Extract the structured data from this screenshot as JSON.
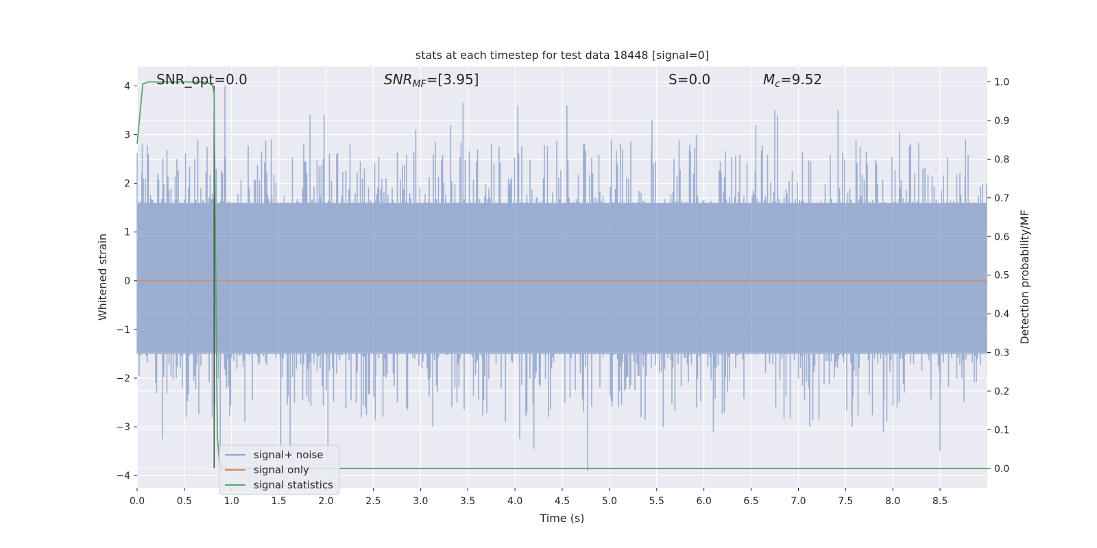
{
  "chart_data": {
    "type": "line",
    "title": "stats at each timestep for test data 18448 [signal=0]",
    "xlabel": "Time (s)",
    "ylabel": "Whitened strain",
    "y2label": "Detection probability/MF",
    "xlim": [
      0,
      9.0
    ],
    "ylim": [
      -4.25,
      4.4
    ],
    "y2lim": [
      -0.05,
      1.04
    ],
    "xticks": [
      0.0,
      0.5,
      1.0,
      1.5,
      2.0,
      2.5,
      3.0,
      3.5,
      4.0,
      4.5,
      5.0,
      5.5,
      6.0,
      6.5,
      7.0,
      7.5,
      8.0,
      8.5
    ],
    "xtick_labels": [
      "0.0",
      "0.5",
      "1.0",
      "1.5",
      "2.0",
      "2.5",
      "3.0",
      "3.5",
      "4.0",
      "4.5",
      "5.0",
      "5.5",
      "6.0",
      "6.5",
      "7.0",
      "7.5",
      "8.0",
      "8.5"
    ],
    "yticks": [
      -4,
      -3,
      -2,
      -1,
      0,
      1,
      2,
      3,
      4
    ],
    "ytick_labels": [
      "−4",
      "−3",
      "−2",
      "−1",
      "0",
      "1",
      "2",
      "3",
      "4"
    ],
    "y2ticks": [
      0.0,
      0.1,
      0.2,
      0.3,
      0.4,
      0.5,
      0.6,
      0.7,
      0.8,
      0.9,
      1.0
    ],
    "y2tick_labels": [
      "0.0",
      "0.1",
      "0.2",
      "0.3",
      "0.4",
      "0.5",
      "0.6",
      "0.7",
      "0.8",
      "0.9",
      "1.0"
    ],
    "grid": true,
    "legend_position": "lower-left",
    "annotations": [
      {
        "text": "SNR_opt=0.0"
      },
      {
        "text": "SNR",
        "sub": "MF",
        "suffix": "=[3.95]"
      },
      {
        "text": "S",
        "suffix": "=0.0"
      },
      {
        "text": "M",
        "sub": "c",
        "suffix": "=9.52"
      }
    ],
    "series": [
      {
        "name": "signal+ noise",
        "color": "#4c72b0",
        "axis": "left",
        "note_noise_envelope": [
          1.6,
          -1.5
        ],
        "peaks": [
          [
            0.05,
            2.2
          ],
          [
            0.12,
            2.6
          ],
          [
            0.27,
            -3.25
          ],
          [
            0.42,
            2.5
          ],
          [
            0.52,
            -2.8
          ],
          [
            0.82,
            -2.55
          ],
          [
            0.88,
            -3.5
          ],
          [
            0.93,
            4.0
          ],
          [
            1.14,
            -2.9
          ],
          [
            1.42,
            2.9
          ],
          [
            1.52,
            -3.7
          ],
          [
            1.62,
            -3.7
          ],
          [
            1.83,
            3.4
          ],
          [
            1.98,
            3.4
          ],
          [
            2.02,
            -3.75
          ],
          [
            2.52,
            -2.85
          ],
          [
            2.95,
            3.1
          ],
          [
            3.13,
            -3.0
          ],
          [
            3.32,
            3.2
          ],
          [
            3.45,
            3.65
          ],
          [
            3.75,
            2.8
          ],
          [
            3.9,
            -2.9
          ],
          [
            4.03,
            3.6
          ],
          [
            4.05,
            -3.25
          ],
          [
            4.2,
            -3.45
          ],
          [
            4.55,
            3.6
          ],
          [
            4.77,
            -3.9
          ],
          [
            5.02,
            2.9
          ],
          [
            5.45,
            3.3
          ],
          [
            5.57,
            -3.0
          ],
          [
            5.85,
            2.8
          ],
          [
            5.92,
            3.0
          ],
          [
            6.1,
            -3.1
          ],
          [
            6.55,
            3.2
          ],
          [
            6.75,
            3.5
          ],
          [
            6.78,
            3.4
          ],
          [
            7.12,
            -3.0
          ],
          [
            7.42,
            3.5
          ],
          [
            7.57,
            -3.0
          ],
          [
            7.9,
            -3.1
          ],
          [
            8.07,
            3.05
          ],
          [
            8.5,
            -3.5
          ],
          [
            8.77,
            2.9
          ],
          [
            8.95,
            2.0
          ]
        ]
      },
      {
        "name": "signal only",
        "color": "#dd8452",
        "axis": "left",
        "y_constant": 0.0
      },
      {
        "name": "signal statistics",
        "color": "#55a868",
        "axis": "right",
        "points": [
          [
            0.0,
            0.84
          ],
          [
            0.06,
            0.995
          ],
          [
            0.12,
            1.0
          ],
          [
            0.25,
            1.0
          ],
          [
            0.5,
            1.0
          ],
          [
            0.74,
            1.0
          ],
          [
            0.8,
            0.99
          ],
          [
            0.815,
            0.97
          ],
          [
            0.83,
            0.55
          ],
          [
            0.85,
            0.08
          ],
          [
            0.87,
            0.02
          ],
          [
            0.9,
            0.0
          ],
          [
            1.0,
            0.0
          ],
          [
            9.0,
            0.0
          ]
        ]
      }
    ],
    "vertical_line": {
      "x": 0.815,
      "y_from": -3.85,
      "y_to": 4.0,
      "color": "#404040"
    }
  }
}
